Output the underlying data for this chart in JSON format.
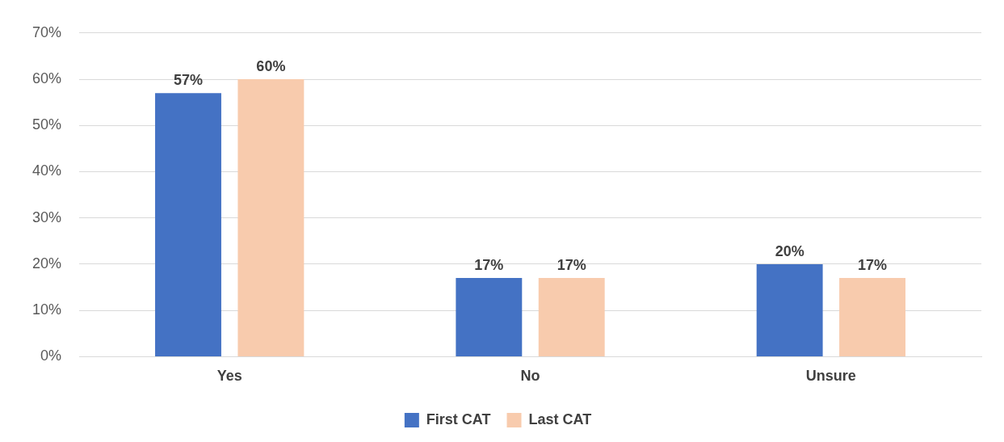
{
  "chart_data": {
    "type": "bar",
    "categories": [
      "Yes",
      "No",
      "Unsure"
    ],
    "series": [
      {
        "name": "First CAT",
        "color": "#4472c4",
        "values": [
          57,
          17,
          20
        ],
        "value_labels": [
          "57%",
          "17%",
          "20%"
        ]
      },
      {
        "name": "Last CAT",
        "color": "#f8cbad",
        "values": [
          60,
          17,
          17
        ],
        "value_labels": [
          "60%",
          "17%",
          "17%"
        ]
      }
    ],
    "ylim": [
      0,
      70
    ],
    "yticks": [
      {
        "value": 0,
        "label": "0%"
      },
      {
        "value": 10,
        "label": "10%"
      },
      {
        "value": 20,
        "label": "20%"
      },
      {
        "value": 30,
        "label": "30%"
      },
      {
        "value": 40,
        "label": "40%"
      },
      {
        "value": 50,
        "label": "50%"
      },
      {
        "value": 60,
        "label": "60%"
      },
      {
        "value": 70,
        "label": "70%"
      }
    ],
    "grid": "y",
    "legend": "bottom"
  }
}
